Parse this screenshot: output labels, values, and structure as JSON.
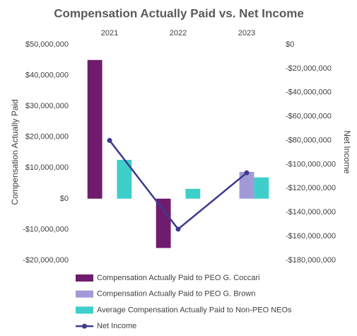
{
  "chart_data": {
    "type": "bar",
    "title": "Compensation Actually Paid vs. Net Income",
    "categories": [
      "2021",
      "2022",
      "2023"
    ],
    "y_label": "Compensation Actually Paid",
    "y2_label": "Net Income",
    "series": [
      {
        "name": "Compensation Actually Paid to PEO G. Coccari",
        "color": "#701c6e",
        "values": [
          45000000,
          -16000000,
          null
        ]
      },
      {
        "name": "Compensation Actually Paid to PEO G. Brown",
        "color": "#a29ad8",
        "values": [
          null,
          null,
          8700000
        ]
      },
      {
        "name": "Average Compensation Actually Paid to Non-PEO NEOs",
        "color": "#3ecfca",
        "values": [
          12600000,
          3200000,
          6900000
        ]
      },
      {
        "name": "Net Income",
        "color": "#3d3a8c",
        "type": "line",
        "axis": "y2",
        "values": [
          -80000000,
          -154000000,
          -107000000
        ]
      }
    ],
    "ylim": [
      -20000000,
      50000000
    ],
    "yticks": [
      {
        "value": -20000000,
        "label": "-$20,000,000"
      },
      {
        "value": -10000000,
        "label": "-$10,000,000"
      },
      {
        "value": 0,
        "label": "$0"
      },
      {
        "value": 10000000,
        "label": "$10,000,000"
      },
      {
        "value": 20000000,
        "label": "$20,000,000"
      },
      {
        "value": 30000000,
        "label": "$30,000,000"
      },
      {
        "value": 40000000,
        "label": "$40,000,000"
      },
      {
        "value": 50000000,
        "label": "$50,000,000"
      }
    ],
    "y2lim": [
      -180000000,
      0
    ],
    "y2ticks": [
      {
        "value": -180000000,
        "label": "-$180,000,000"
      },
      {
        "value": -160000000,
        "label": "-$160,000,000"
      },
      {
        "value": -140000000,
        "label": "-$140,000,000"
      },
      {
        "value": -120000000,
        "label": "-$120,000,000"
      },
      {
        "value": -100000000,
        "label": "-$100,000,000"
      },
      {
        "value": -80000000,
        "label": "-$80,000,000"
      },
      {
        "value": -60000000,
        "label": "-$60,000,000"
      },
      {
        "value": -40000000,
        "label": "-$40,000,000"
      },
      {
        "value": -20000000,
        "label": "-$20,000,000"
      },
      {
        "value": 0,
        "label": "$0"
      }
    ],
    "legend": "bottom"
  }
}
